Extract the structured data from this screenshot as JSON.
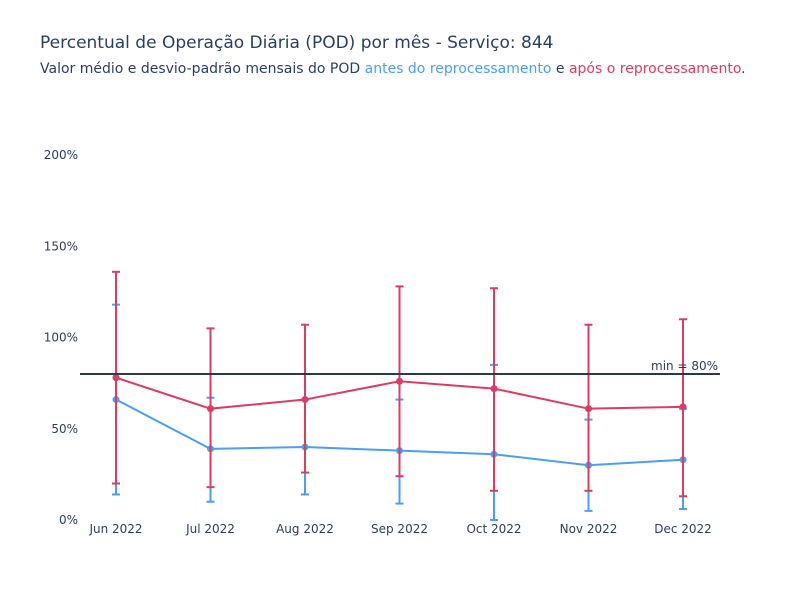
{
  "title": "Percentual de Operação Diária (POD) por mês - Serviço: 844",
  "subtitle": {
    "prefix": "Valor médio e desvio-padrão mensais do POD ",
    "before": "antes do reprocessamento",
    "middle": " e ",
    "after": "após o reprocessamento",
    "suffix": "."
  },
  "colors": {
    "before": "#4a9ff5",
    "after": "#dc3c64",
    "threshold": "#2b3a4a",
    "text": "#2a3f5f"
  },
  "chart_data": {
    "type": "line",
    "categories": [
      "Jun 2022",
      "Jul 2022",
      "Aug 2022",
      "Sep 2022",
      "Oct 2022",
      "Nov 2022",
      "Dec 2022"
    ],
    "yticks": [
      "0%",
      "50%",
      "100%",
      "150%",
      "200%"
    ],
    "ylim": [
      0,
      200
    ],
    "grid": false,
    "series": [
      {
        "key": "before",
        "mean": [
          66,
          39,
          40,
          38,
          36,
          30,
          33
        ],
        "lower": [
          14,
          10,
          14,
          9,
          0,
          5,
          6
        ],
        "upper": [
          118,
          67,
          66,
          66,
          85,
          55,
          61
        ]
      },
      {
        "key": "after",
        "mean": [
          78,
          61,
          66,
          76,
          72,
          61,
          62
        ],
        "lower": [
          20,
          18,
          26,
          24,
          16,
          16,
          13
        ],
        "upper": [
          136,
          105,
          107,
          128,
          127,
          107,
          110
        ]
      }
    ],
    "threshold": {
      "value": 80,
      "label": "min = 80%"
    }
  }
}
